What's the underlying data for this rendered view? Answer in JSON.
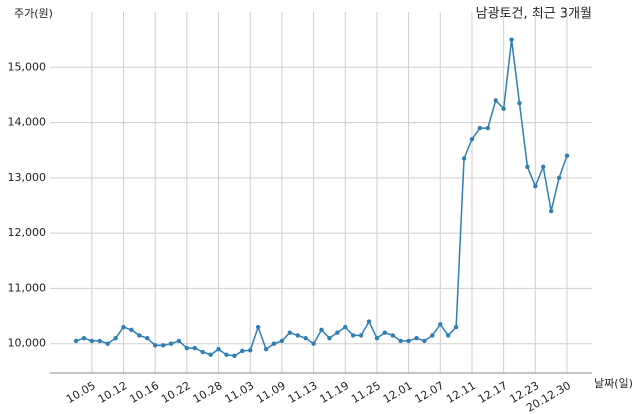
{
  "chart_data": {
    "type": "line",
    "title": "남광토건, 최근 3개월",
    "y_label": "주가(원)",
    "x_label": "날짜(일)",
    "color": "#2f7fb5",
    "grid": true,
    "categories": [
      null,
      null,
      "10.05",
      null,
      null,
      null,
      "10.12",
      null,
      null,
      null,
      "10.16",
      null,
      null,
      null,
      "10.22",
      null,
      null,
      null,
      "10.28",
      null,
      null,
      null,
      "11.03",
      null,
      null,
      null,
      "11.09",
      null,
      null,
      null,
      "11.13",
      null,
      null,
      null,
      "11.19",
      null,
      null,
      null,
      "11.25",
      null,
      null,
      null,
      "12.01",
      null,
      null,
      null,
      "12.07",
      null,
      null,
      null,
      "12.11",
      null,
      null,
      null,
      "12.17",
      null,
      null,
      null,
      "12.23",
      null,
      null,
      null,
      "20.12.30"
    ],
    "values": [
      10050,
      10100,
      10050,
      10050,
      10000,
      10100,
      10300,
      10250,
      10150,
      10100,
      9970,
      9970,
      10000,
      10050,
      9920,
      9920,
      9850,
      9800,
      9900,
      9800,
      9780,
      9870,
      9880,
      10300,
      9900,
      10000,
      10050,
      10200,
      10150,
      10100,
      10000,
      10250,
      10100,
      10200,
      10300,
      10150,
      10150,
      10400,
      10100,
      10200,
      10150,
      10050,
      10050,
      10100,
      10050,
      10150,
      10350,
      10150,
      10300,
      13350,
      13700,
      13900,
      13900,
      14400,
      14250,
      15500,
      14350,
      13200,
      12850,
      13200,
      12400,
      13000,
      13400
    ],
    "ylim": [
      9470,
      16000
    ],
    "yticks": [
      {
        "value": 10000,
        "label": "10,000"
      },
      {
        "value": 11000,
        "label": "11,000"
      },
      {
        "value": 12000,
        "label": "12,000"
      },
      {
        "value": 13000,
        "label": "13,000"
      },
      {
        "value": 14000,
        "label": "14,000"
      },
      {
        "value": 15000,
        "label": "15,000"
      }
    ]
  }
}
